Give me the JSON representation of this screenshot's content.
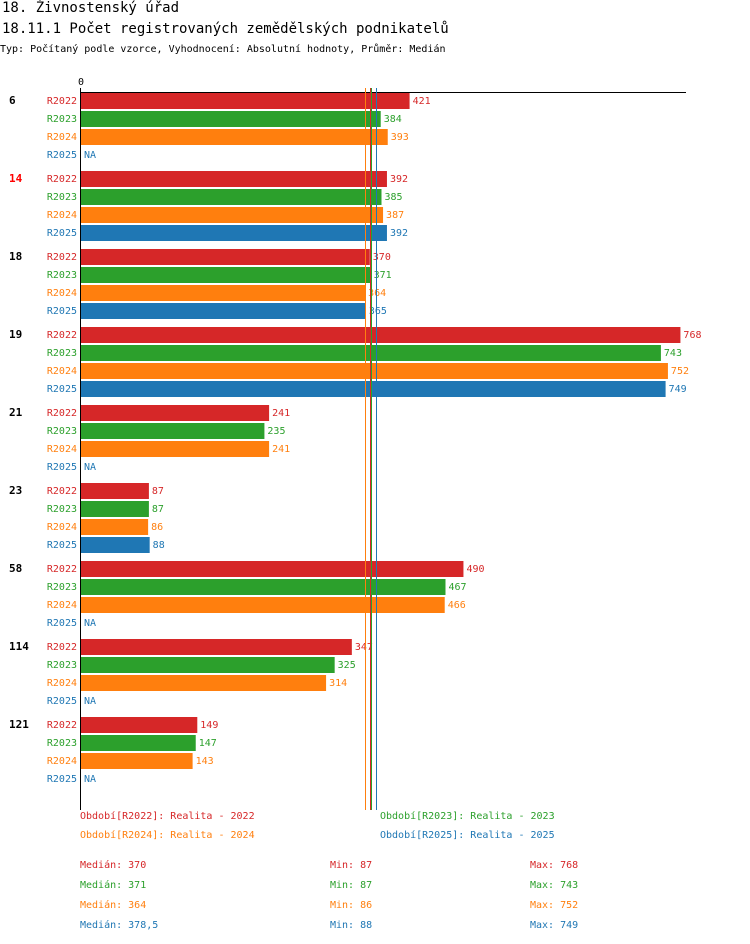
{
  "header": {
    "section": "18. Živnostenský úřad",
    "title": "18.11.1 Počet registrovaných zemědělských podnikatelů",
    "subtitle": "Typ: Počítaný podle vzorce, Vyhodnocení: Absolutní hodnoty, Průměr: Medián"
  },
  "colors": {
    "R2022": "#d62728",
    "R2023": "#2ca02c",
    "R2024": "#ff7f0e",
    "R2025": "#1f77b4",
    "highlight": "#ff0000"
  },
  "chart_data": {
    "type": "bar",
    "orientation": "horizontal",
    "axis_zero_label": "0",
    "xlim": [
      0,
      768
    ],
    "series_names": [
      "R2022",
      "R2023",
      "R2024",
      "R2025"
    ],
    "groups": [
      {
        "label": "6",
        "highlight": false,
        "values": [
          421,
          384,
          393,
          null
        ]
      },
      {
        "label": "14",
        "highlight": true,
        "values": [
          392,
          385,
          387,
          392
        ]
      },
      {
        "label": "18",
        "highlight": false,
        "values": [
          370,
          371,
          364,
          365
        ]
      },
      {
        "label": "19",
        "highlight": false,
        "values": [
          768,
          743,
          752,
          749
        ]
      },
      {
        "label": "21",
        "highlight": false,
        "values": [
          241,
          235,
          241,
          null
        ]
      },
      {
        "label": "23",
        "highlight": false,
        "values": [
          87,
          87,
          86,
          88
        ]
      },
      {
        "label": "58",
        "highlight": false,
        "values": [
          490,
          467,
          466,
          null
        ]
      },
      {
        "label": "114",
        "highlight": false,
        "values": [
          347,
          325,
          314,
          null
        ]
      },
      {
        "label": "121",
        "highlight": false,
        "values": [
          149,
          147,
          143,
          null
        ]
      }
    ],
    "na_label": "NA",
    "median_lines": {
      "R2022": 370,
      "R2023": 371,
      "R2024": 364,
      "R2025": 378.5
    }
  },
  "legend": [
    {
      "series": "R2022",
      "text": "Období[R2022]: Realita - 2022"
    },
    {
      "series": "R2023",
      "text": "Období[R2023]: Realita - 2023"
    },
    {
      "series": "R2024",
      "text": "Období[R2024]: Realita - 2024"
    },
    {
      "series": "R2025",
      "text": "Období[R2025]: Realita - 2025"
    }
  ],
  "stats": [
    {
      "series": "R2022",
      "median": "Medián: 370",
      "min": "Min: 87",
      "max": "Max: 768"
    },
    {
      "series": "R2023",
      "median": "Medián: 371",
      "min": "Min: 87",
      "max": "Max: 743"
    },
    {
      "series": "R2024",
      "median": "Medián: 364",
      "min": "Min: 86",
      "max": "Max: 752"
    },
    {
      "series": "R2025",
      "median": "Medián: 378,5",
      "min": "Min: 88",
      "max": "Max: 749"
    }
  ]
}
